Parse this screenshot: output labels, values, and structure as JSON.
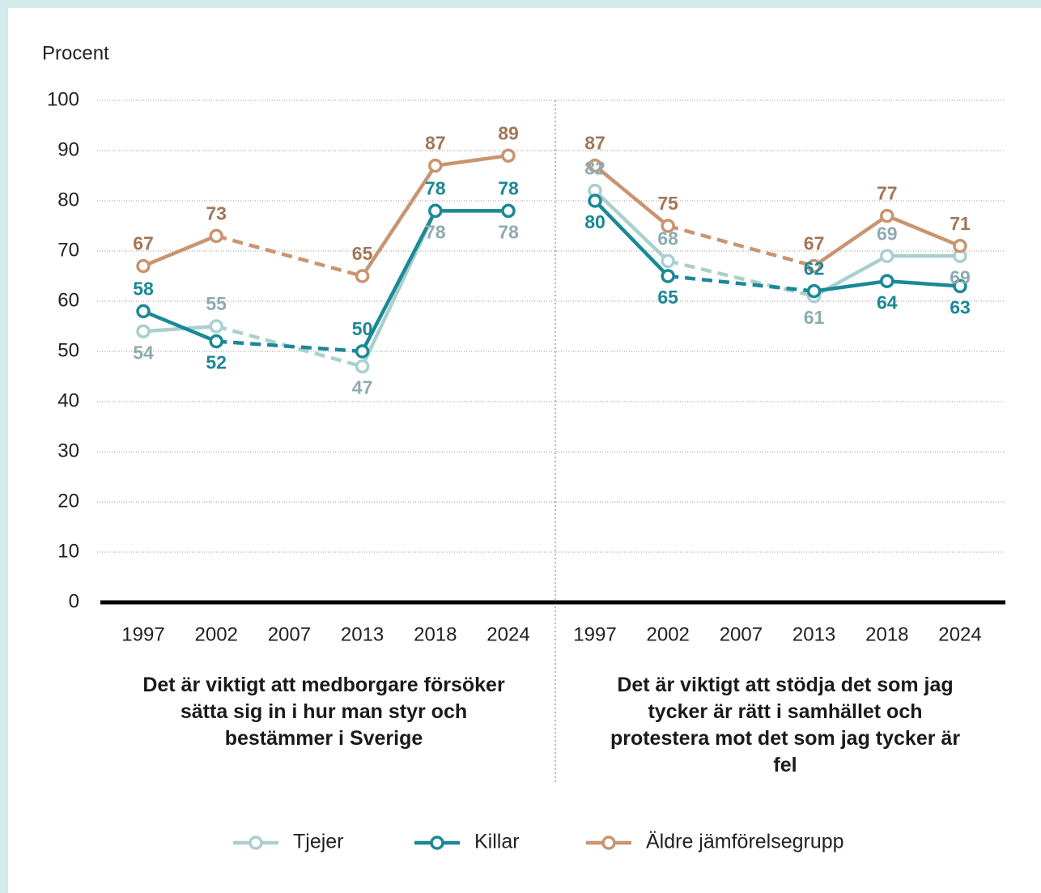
{
  "chart_data": {
    "type": "line",
    "y_label": "Procent",
    "ylim": [
      0,
      100
    ],
    "yticks": [
      0,
      10,
      20,
      30,
      40,
      50,
      60,
      70,
      80,
      90,
      100
    ],
    "grid": true,
    "series": [
      {
        "name": "Tjejer",
        "color": "#a9d0cf",
        "label_color": "#8eabb1"
      },
      {
        "name": "Killar",
        "color": "#1b8896",
        "label_color": "#1b8896"
      },
      {
        "name": "Äldre jämförelsegrupp",
        "color": "#c99470",
        "label_color": "#a27658"
      }
    ],
    "panels": [
      {
        "title": "Det är viktigt att medborgare försöker sätta sig in i hur man styr och bestämmer i Sverige",
        "categories": [
          "1997",
          "2002",
          "2007",
          "2013",
          "2018",
          "2024"
        ],
        "series_values": [
          [
            54,
            55,
            null,
            47,
            78,
            78
          ],
          [
            58,
            52,
            null,
            50,
            78,
            78
          ],
          [
            67,
            73,
            null,
            65,
            87,
            89
          ]
        ]
      },
      {
        "title": "Det är viktigt att stödja det som jag tycker är rätt i samhället och protestera mot det som jag tycker är fel",
        "categories": [
          "1997",
          "2002",
          "2007",
          "2013",
          "2018",
          "2024"
        ],
        "series_values": [
          [
            82,
            68,
            null,
            61,
            69,
            69
          ],
          [
            80,
            65,
            null,
            62,
            64,
            63
          ],
          [
            87,
            75,
            null,
            67,
            77,
            71
          ]
        ]
      }
    ]
  }
}
